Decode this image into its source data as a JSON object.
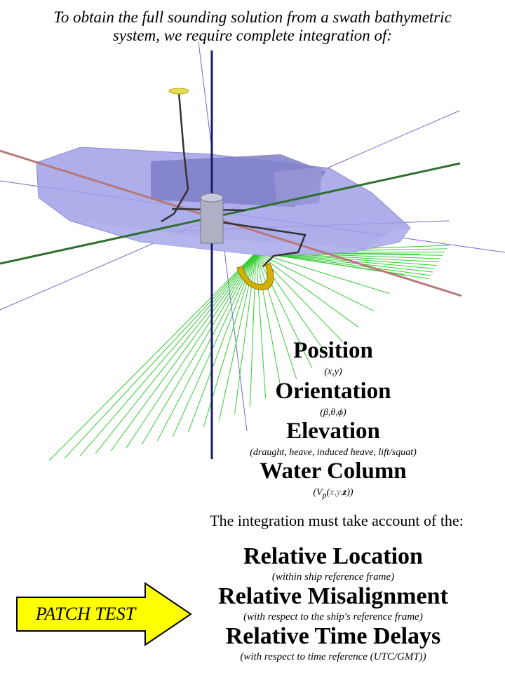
{
  "intro": {
    "line1": "To obtain the full sounding solution from a swath bathymetric",
    "line2": "system, we require complete integration of:"
  },
  "parameters": [
    {
      "label": "Position",
      "detail": "(x,y)"
    },
    {
      "label": "Orientation",
      "detail": "(β,θ,ϕ)"
    },
    {
      "label": "Elevation",
      "detail": "(draught, heave, induced heave, lift/squat)"
    },
    {
      "label": "Water Column",
      "detail_prefix": "(V",
      "detail_sub": "p",
      "detail_open": "(",
      "detail_vars": "x,y,",
      "detail_z": "z",
      "detail_close": "))"
    }
  ],
  "integration_heading": "The integration must take account of the:",
  "relatives": [
    {
      "label": "Relative Location",
      "detail": "(within ship reference frame)"
    },
    {
      "label": "Relative Misalignment",
      "detail": "(with respect to the ship's reference frame)"
    },
    {
      "label": "Relative Time Delays",
      "detail": "(with respect to time reference (UTC/GMT))"
    }
  ],
  "patch_test": {
    "label": "PATCH TEST",
    "fill_color": "#ffff00"
  },
  "colors": {
    "hull": "#a0a0e6",
    "x_axis": "#b87878",
    "y_axis": "#2f6f2f",
    "z_axis": "#1a1a66",
    "beams": "#33cc33",
    "transducer": "#d4b000",
    "antenna": "#e6dc50"
  }
}
